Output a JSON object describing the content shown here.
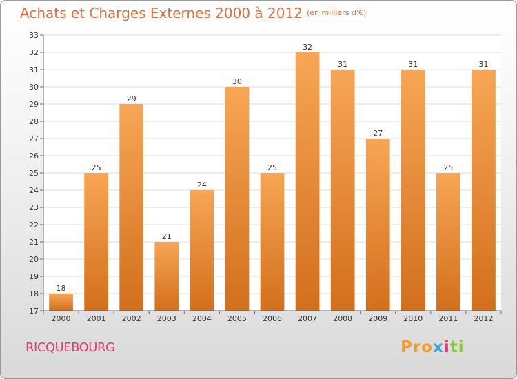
{
  "title": "Achats et Charges Externes 2000 à 2012",
  "subtitle": "(en milliers d'€)",
  "place": "RICQUEBOURG",
  "logo": {
    "p1": "Pro",
    "p2": "x",
    "p3": "i",
    "p4": "ti"
  },
  "colors": {
    "bar_top": "#f7a655",
    "bar_bottom": "#d26f1c",
    "title": "#e2703a",
    "place": "#e33a74"
  },
  "chart_data": {
    "type": "bar",
    "title": "Achats et Charges Externes 2000 à 2012",
    "subtitle": "(en milliers d'€)",
    "categories": [
      "2000",
      "2001",
      "2002",
      "2003",
      "2004",
      "2005",
      "2006",
      "2007",
      "2008",
      "2009",
      "2010",
      "2011",
      "2012"
    ],
    "values": [
      18,
      25,
      29,
      21,
      24,
      30,
      25,
      32,
      31,
      27,
      31,
      25,
      31
    ],
    "ylim": [
      17,
      33
    ],
    "yticks": [
      17,
      18,
      19,
      20,
      21,
      22,
      23,
      24,
      25,
      26,
      27,
      28,
      29,
      30,
      31,
      32,
      33
    ],
    "grid": true,
    "xlabel": "",
    "ylabel": ""
  }
}
